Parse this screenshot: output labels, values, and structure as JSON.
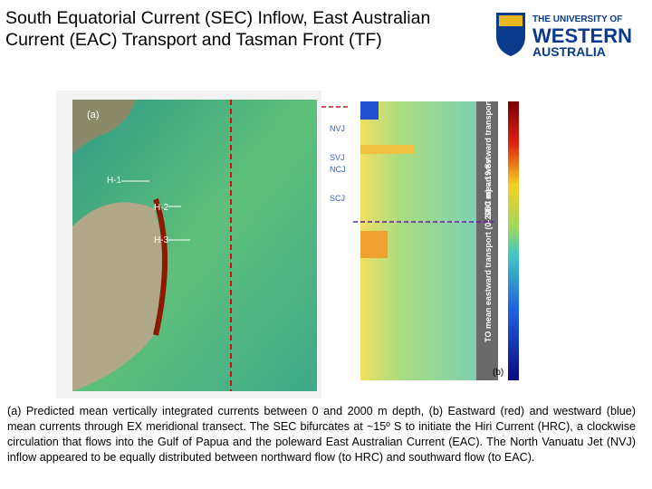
{
  "header": {
    "title": "South Equatorial Current (SEC) Inflow, East Australian Current (EAC) Transport and Tasman Front (TF)"
  },
  "logo": {
    "line1": "THE UNIVERSITY OF",
    "line2": "WESTERN",
    "line3": "AUSTRALIA"
  },
  "figure": {
    "panel_a": {
      "label": "(a)",
      "markers": [
        "H-1",
        "H-2",
        "H-3"
      ]
    },
    "jets": [
      "NVJ",
      "SVJ",
      "NCJ",
      "SCJ"
    ],
    "panel_b": {
      "label": "(b)",
      "sec_note": "SEC mean westward transport (0-2000 m) = 32 Sv",
      "to_note": "TO mean eastward transport (0-2000 m) = 19 Sv"
    }
  },
  "caption": "(a) Predicted mean vertically integrated currents  between 0 and 2000 m depth, (b)  Eastward (red) and westward (blue) mean currents through EX  meridional transect. The SEC bifurcates at ~15º S to initiate the Hiri Current (HRC), a clockwise circulation that flows into the Gulf of Papua and the poleward East Australian Current (EAC). The North Vanuatu Jet  (NVJ) inflow appeared to be equally distributed between northward flow (to HRC) and southward flow (to EAC)."
}
